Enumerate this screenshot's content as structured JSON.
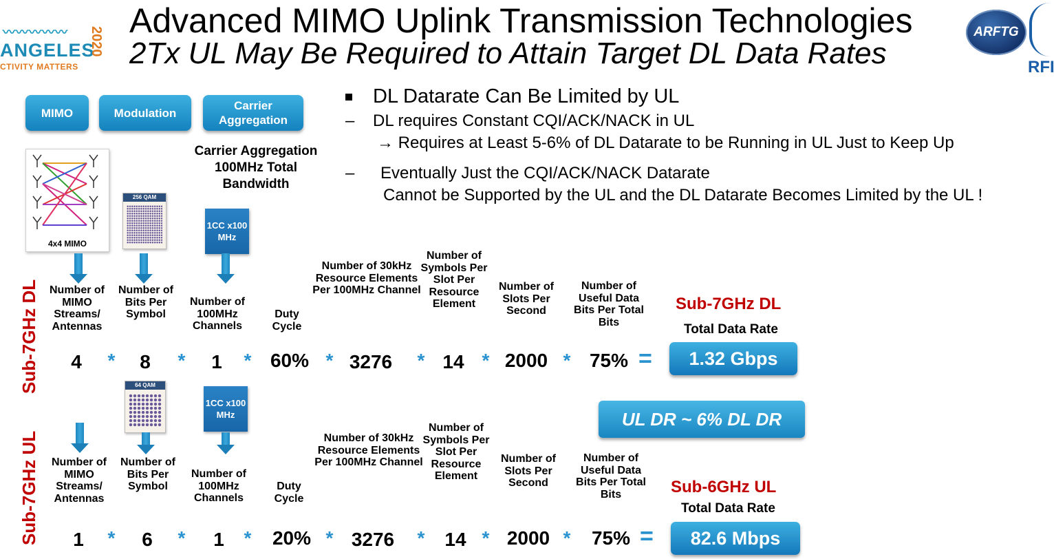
{
  "header": {
    "title": "Advanced MIMO Uplink Transmission Technologies",
    "subtitle": "2Tx UL May Be Required to Attain Target DL Data Rates"
  },
  "logos": {
    "left": {
      "word": "ANGELES",
      "year": "2020",
      "tagline": "CTIVITY MATTERS"
    },
    "arftg": "ARFTG",
    "rfic": "RFIC"
  },
  "top_buttons": [
    "MIMO",
    "Modulation",
    "Carrier Aggregation"
  ],
  "carrier_note": "Carrier Aggregation 100MHz Total Bandwidth",
  "bullets": {
    "b1": "DL Datarate Can Be Limited by UL",
    "b2_dash": "–",
    "b2": "DL requires Constant CQI/ACK/NACK in UL",
    "b3": "→ Requires at Least 5-6% of DL Datarate to be Running in UL Just to Keep Up",
    "b4_dash": "–",
    "b4": "Eventually Just the CQI/ACK/NACK Datarate",
    "b5": "Cannot be Supported by the UL and the DL Datarate Becomes Limited by the UL !"
  },
  "images": {
    "mimo_caption": "4x4 MIMO",
    "qam_dl": "256 QAM",
    "qam_ul": "64 QAM",
    "cc_box": "1CC x100 MHz"
  },
  "columns": [
    "Number of MIMO Streams/ Antennas",
    "Number of Bits Per Symbol",
    "Number of 100MHz Channels",
    "Duty Cycle",
    "Number of 30kHz Resource Elements Per 100MHz Channel",
    "Number of Symbols Per Slot Per Resource Element",
    "Number of Slots Per Second",
    "Number of Useful Data Bits Per Total Bits"
  ],
  "operator": "*",
  "equals": "=",
  "dl": {
    "side_label": "Sub-7GHz DL",
    "values": [
      "4",
      "8",
      "1",
      "60%",
      "3276",
      "14",
      "2000",
      "75%"
    ],
    "result_title": "Sub-7GHz DL",
    "result_sub": "Total Data Rate",
    "result": "1.32 Gbps"
  },
  "ratio": "UL DR ~ 6% DL DR",
  "ul": {
    "side_label": "Sub-7GHz UL",
    "values": [
      "1",
      "6",
      "1",
      "20%",
      "3276",
      "14",
      "2000",
      "75%"
    ],
    "result_title": "Sub-6GHz UL",
    "result_sub": "Total Data Rate",
    "result": "82.6 Mbps"
  },
  "colors": {
    "accent": "#1a8ac4",
    "highlight": "#c00000"
  }
}
